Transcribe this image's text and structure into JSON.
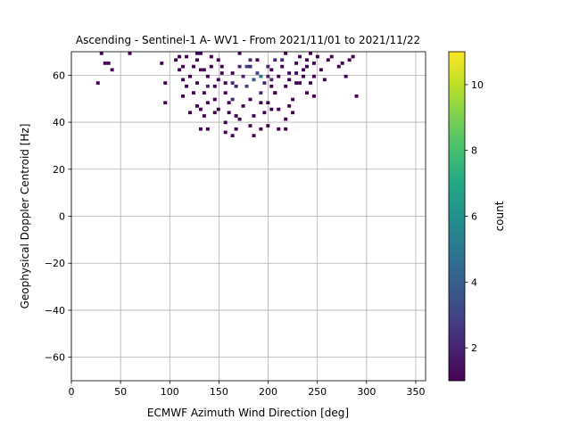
{
  "chart_data": {
    "type": "heatmap",
    "title": "Ascending - Sentinel-1 A- WV1 - From 2021/11/01 to 2021/11/22",
    "xlabel": "ECMWF Azimuth Wind Direction [deg]",
    "ylabel": "Geophysical Doppler Centroid [Hz]",
    "xlim": [
      0,
      360
    ],
    "ylim": [
      -70,
      70
    ],
    "xticks": [
      0,
      50,
      100,
      150,
      200,
      250,
      300,
      350
    ],
    "yticks": [
      -60,
      -40,
      -20,
      0,
      20,
      40,
      60
    ],
    "grid": true,
    "colorbar": {
      "label": "count",
      "colormap": "viridis",
      "range": [
        1,
        11
      ],
      "ticks": [
        2,
        4,
        6,
        8,
        10
      ]
    },
    "bin_size": {
      "x": 3.6,
      "y": 1.4
    },
    "cells": [
      [
        29,
        69,
        1
      ],
      [
        33,
        65,
        1
      ],
      [
        37,
        65,
        1
      ],
      [
        42,
        62,
        1
      ],
      [
        26,
        57,
        1
      ],
      [
        59,
        69,
        1
      ],
      [
        96,
        48,
        1
      ],
      [
        97,
        57,
        1
      ],
      [
        93,
        65,
        1
      ],
      [
        105,
        66,
        1
      ],
      [
        110,
        68,
        1
      ],
      [
        114,
        64,
        1
      ],
      [
        108,
        62,
        1
      ],
      [
        115,
        58,
        1
      ],
      [
        118,
        55,
        1
      ],
      [
        121,
        60,
        1
      ],
      [
        126,
        67,
        1
      ],
      [
        129,
        69,
        1
      ],
      [
        124,
        52,
        1
      ],
      [
        113,
        51,
        1
      ],
      [
        128,
        47,
        1
      ],
      [
        133,
        45,
        1
      ],
      [
        119,
        44,
        1
      ],
      [
        135,
        42,
        1
      ],
      [
        136,
        62,
        1
      ],
      [
        140,
        59,
        1
      ],
      [
        142,
        64,
        1
      ],
      [
        138,
        55,
        2
      ],
      [
        144,
        50,
        1
      ],
      [
        147,
        44,
        1
      ],
      [
        140,
        37,
        1
      ],
      [
        131,
        37,
        1
      ],
      [
        150,
        67,
        1
      ],
      [
        152,
        61,
        1
      ],
      [
        155,
        57,
        1
      ],
      [
        157,
        52,
        1
      ],
      [
        160,
        48,
        1
      ],
      [
        158,
        40,
        1
      ],
      [
        156,
        35,
        1
      ],
      [
        163,
        34,
        1
      ],
      [
        166,
        37,
        1
      ],
      [
        168,
        43,
        1
      ],
      [
        170,
        64,
        2
      ],
      [
        172,
        69,
        1
      ],
      [
        175,
        60,
        2
      ],
      [
        178,
        55,
        3
      ],
      [
        181,
        63,
        2
      ],
      [
        183,
        49,
        1
      ],
      [
        186,
        58,
        4
      ],
      [
        189,
        67,
        1
      ],
      [
        191,
        52,
        2
      ],
      [
        193,
        60,
        5
      ],
      [
        195,
        44,
        1
      ],
      [
        197,
        56,
        2
      ],
      [
        198,
        64,
        2
      ],
      [
        200,
        48,
        1
      ],
      [
        202,
        62,
        1
      ],
      [
        204,
        58,
        2
      ],
      [
        206,
        52,
        1
      ],
      [
        208,
        67,
        2
      ],
      [
        210,
        59,
        1
      ],
      [
        212,
        45,
        1
      ],
      [
        215,
        63,
        1
      ],
      [
        217,
        55,
        1
      ],
      [
        219,
        69,
        1
      ],
      [
        222,
        61,
        1
      ],
      [
        224,
        50,
        1
      ],
      [
        226,
        44,
        1
      ],
      [
        228,
        65,
        1
      ],
      [
        230,
        56,
        1
      ],
      [
        232,
        68,
        1
      ],
      [
        234,
        62,
        1
      ],
      [
        236,
        59,
        1
      ],
      [
        238,
        53,
        1
      ],
      [
        240,
        66,
        1
      ],
      [
        242,
        69,
        1
      ],
      [
        245,
        60,
        1
      ],
      [
        248,
        65,
        1
      ],
      [
        250,
        68,
        1
      ],
      [
        255,
        62,
        1
      ],
      [
        258,
        58,
        1
      ],
      [
        262,
        66,
        1
      ],
      [
        265,
        68,
        1
      ],
      [
        270,
        64,
        1
      ],
      [
        275,
        65,
        1
      ],
      [
        278,
        60,
        1
      ],
      [
        282,
        67,
        1
      ],
      [
        286,
        68,
        1
      ],
      [
        291,
        51,
        1
      ],
      [
        160,
        44,
        1
      ],
      [
        172,
        41,
        1
      ],
      [
        180,
        38,
        1
      ],
      [
        184,
        34,
        1
      ],
      [
        194,
        37,
        1
      ],
      [
        201,
        38,
        1
      ],
      [
        212,
        37,
        1
      ],
      [
        217,
        37,
        1
      ],
      [
        150,
        46,
        1
      ],
      [
        165,
        50,
        2
      ],
      [
        175,
        47,
        1
      ],
      [
        185,
        42,
        1
      ],
      [
        192,
        48,
        1
      ],
      [
        205,
        46,
        1
      ],
      [
        218,
        41,
        1
      ],
      [
        222,
        47,
        1
      ],
      [
        145,
        55,
        1
      ],
      [
        148,
        58,
        1
      ],
      [
        153,
        64,
        1
      ],
      [
        162,
        57,
        2
      ],
      [
        165,
        61,
        1
      ],
      [
        168,
        55,
        2
      ],
      [
        177,
        63,
        3
      ],
      [
        183,
        67,
        2
      ],
      [
        188,
        61,
        3
      ],
      [
        199,
        59,
        2
      ],
      [
        203,
        55,
        1
      ],
      [
        208,
        53,
        1
      ],
      [
        213,
        66,
        2
      ],
      [
        221,
        58,
        1
      ],
      [
        227,
        61,
        1
      ],
      [
        233,
        57,
        1
      ],
      [
        238,
        64,
        1
      ],
      [
        244,
        56,
        1
      ],
      [
        247,
        51,
        1
      ],
      [
        127,
        57,
        1
      ],
      [
        131,
        62,
        1
      ],
      [
        134,
        52,
        1
      ],
      [
        137,
        48,
        1
      ],
      [
        141,
        68,
        1
      ],
      [
        118,
        68,
        1
      ],
      [
        123,
        64,
        1
      ],
      [
        132,
        69,
        1
      ]
    ]
  }
}
